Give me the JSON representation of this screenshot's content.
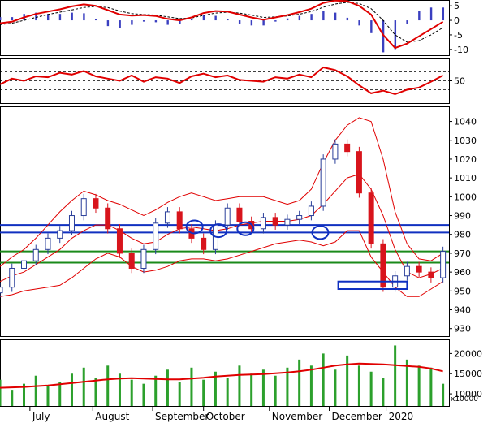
{
  "colors": {
    "background": "#ffffff",
    "up_candle": "#2a3f9a",
    "down_candle": "#d8141c",
    "ma_line": "#e00000",
    "bollinger": "#e00000",
    "resistance_lines": "#1030c0",
    "support_lines": "#1a8a1a",
    "volume_bars": "#2ca02c",
    "volume_ma": "#e00000",
    "macd_hist": "#3a3fc0",
    "circles": "#1030c0"
  },
  "chart_data": [
    {
      "panel": "macd",
      "type": "line",
      "yticks": [
        "5",
        "0",
        "-5",
        "-10"
      ],
      "ylim": [
        -12,
        7
      ],
      "x": [
        0,
        4,
        8,
        12,
        16,
        20,
        24,
        28,
        32,
        36,
        40,
        44,
        48,
        52,
        56,
        60,
        64,
        68,
        72,
        76,
        80,
        84,
        88,
        92,
        96,
        100,
        104,
        108,
        112,
        116,
        120,
        124,
        128,
        132,
        136,
        140,
        144,
        148
      ],
      "series": [
        {
          "role": "macd",
          "values": [
            -1,
            -0.5,
            1,
            2.2,
            3,
            3.8,
            4.8,
            5.5,
            5,
            3.5,
            2,
            1.6,
            1.8,
            1.5,
            0.5,
            0,
            1,
            2.5,
            3.2,
            3,
            2,
            1,
            0.2,
            1,
            1.8,
            2.8,
            4,
            6,
            6.8,
            6.6,
            5,
            2,
            -5,
            -9.5,
            -8,
            -5.5,
            -3,
            -0.5
          ]
        },
        {
          "role": "signal",
          "values": [
            -1.5,
            -1,
            0,
            1,
            2,
            2.8,
            3.6,
            4.4,
            4.8,
            4.4,
            3.2,
            2.3,
            2,
            1.8,
            1.2,
            0.6,
            0.8,
            1.7,
            2.5,
            2.8,
            2.5,
            1.8,
            1,
            1.2,
            1.5,
            2.1,
            3,
            4.5,
            5.6,
            6.2,
            5.8,
            4,
            0,
            -5,
            -7.5,
            -7,
            -5,
            -2.5
          ]
        }
      ]
    },
    {
      "panel": "rsi",
      "type": "line",
      "yticks": [
        "50"
      ],
      "ylim": [
        0,
        100
      ],
      "reference_levels": [
        30,
        50,
        70
      ],
      "x": [
        0,
        4,
        8,
        12,
        16,
        20,
        24,
        28,
        32,
        36,
        40,
        44,
        48,
        52,
        56,
        60,
        64,
        68,
        72,
        76,
        80,
        84,
        88,
        92,
        96,
        100,
        104,
        108,
        112,
        116,
        120,
        124,
        128,
        132,
        136,
        140,
        144,
        148
      ],
      "values": [
        42,
        55,
        50,
        60,
        58,
        68,
        64,
        72,
        60,
        55,
        50,
        62,
        48,
        58,
        55,
        45,
        60,
        66,
        58,
        62,
        52,
        50,
        48,
        58,
        55,
        64,
        58,
        80,
        74,
        60,
        40,
        22,
        28,
        20,
        30,
        35,
        48,
        62
      ]
    },
    {
      "panel": "price",
      "type": "candlestick",
      "yticks": [
        "1040",
        "1030",
        "1020",
        "1010",
        "1000",
        "990",
        "980",
        "970",
        "960",
        "950",
        "940",
        "930"
      ],
      "ylim": [
        926,
        1048
      ],
      "x": [
        0,
        4,
        8,
        12,
        16,
        20,
        24,
        28,
        32,
        36,
        40,
        44,
        48,
        52,
        56,
        60,
        64,
        68,
        72,
        76,
        80,
        84,
        88,
        92,
        96,
        100,
        104,
        108,
        112,
        116,
        120,
        124,
        128,
        132,
        136,
        140,
        144,
        148
      ],
      "close": [
        952,
        962,
        966,
        972,
        978,
        982,
        990,
        999,
        994,
        983,
        970,
        962,
        972,
        986,
        992,
        983,
        978,
        972,
        985,
        994,
        987,
        983,
        989,
        985,
        988,
        990,
        995,
        1020,
        1028,
        1024,
        1002,
        975,
        952,
        958,
        963,
        960,
        957,
        971
      ],
      "sma20": [
        955,
        958,
        960,
        964,
        968,
        972,
        978,
        982,
        985,
        985,
        982,
        978,
        975,
        976,
        980,
        983,
        984,
        983,
        982,
        983,
        985,
        986,
        987,
        987,
        987,
        988,
        990,
        996,
        1003,
        1010,
        1012,
        1004,
        990,
        972,
        960,
        957,
        959,
        962
      ],
      "upper_band": [
        963,
        968,
        972,
        978,
        985,
        992,
        998,
        1003,
        1001,
        998,
        996,
        993,
        990,
        993,
        997,
        1000,
        1002,
        1000,
        998,
        999,
        1000,
        1000,
        1000,
        998,
        996,
        998,
        1004,
        1018,
        1030,
        1038,
        1042,
        1040,
        1020,
        992,
        975,
        967,
        966,
        970
      ],
      "lower_band": [
        947,
        948,
        950,
        951,
        952,
        953,
        957,
        962,
        967,
        970,
        968,
        963,
        960,
        961,
        963,
        966,
        967,
        967,
        966,
        967,
        969,
        971,
        973,
        975,
        976,
        977,
        976,
        974,
        976,
        982,
        982,
        968,
        960,
        952,
        947,
        947,
        951,
        955
      ],
      "horizontal_levels": [
        {
          "kind": "resistance",
          "value": 985
        },
        {
          "kind": "resistance",
          "value": 981
        },
        {
          "kind": "support",
          "value": 971
        },
        {
          "kind": "support",
          "value": 965
        }
      ],
      "highlight_box": {
        "x_from": 113,
        "x_to": 136,
        "y_from": 951,
        "y_to": 955
      },
      "circled_points": [
        {
          "x": 65,
          "y": 984
        },
        {
          "x": 73,
          "y": 982
        },
        {
          "x": 82,
          "y": 983
        },
        {
          "x": 107,
          "y": 981
        }
      ]
    },
    {
      "panel": "volume",
      "type": "bar",
      "yticks": [
        "20000",
        "15000",
        "10000"
      ],
      "unit_label": "x10000",
      "ylim": [
        7000,
        23500
      ],
      "x": [
        0,
        4,
        8,
        12,
        16,
        20,
        24,
        28,
        32,
        36,
        40,
        44,
        48,
        52,
        56,
        60,
        64,
        68,
        72,
        76,
        80,
        84,
        88,
        92,
        96,
        100,
        104,
        108,
        112,
        116,
        120,
        124,
        128,
        132,
        136,
        140,
        144,
        148
      ],
      "values": [
        13500,
        11000,
        12500,
        14500,
        12000,
        13000,
        15000,
        16500,
        14000,
        17000,
        15000,
        13500,
        12500,
        14500,
        16000,
        13000,
        16500,
        13500,
        15500,
        14000,
        17000,
        15000,
        16000,
        14500,
        16500,
        18500,
        17000,
        20000,
        16000,
        19500,
        17000,
        15500,
        14000,
        22000,
        18500,
        17000,
        16500,
        12500
      ],
      "ma": [
        11500,
        11600,
        11700,
        11900,
        12100,
        12400,
        12700,
        13000,
        13300,
        13600,
        13800,
        13900,
        13800,
        13700,
        13600,
        13600,
        13800,
        14000,
        14300,
        14500,
        14700,
        14800,
        14900,
        15100,
        15300,
        15600,
        16000,
        16500,
        17000,
        17300,
        17500,
        17400,
        17300,
        17100,
        16900,
        16700,
        16300,
        15600
      ]
    }
  ],
  "time_axis": {
    "months": [
      {
        "label": "July",
        "x": 10
      },
      {
        "label": "August",
        "x": 31
      },
      {
        "label": "September",
        "x": 51
      },
      {
        "label": "October",
        "x": 68
      },
      {
        "label": "November",
        "x": 90
      },
      {
        "label": "December",
        "x": 110
      },
      {
        "label": "2020",
        "x": 129
      }
    ]
  }
}
